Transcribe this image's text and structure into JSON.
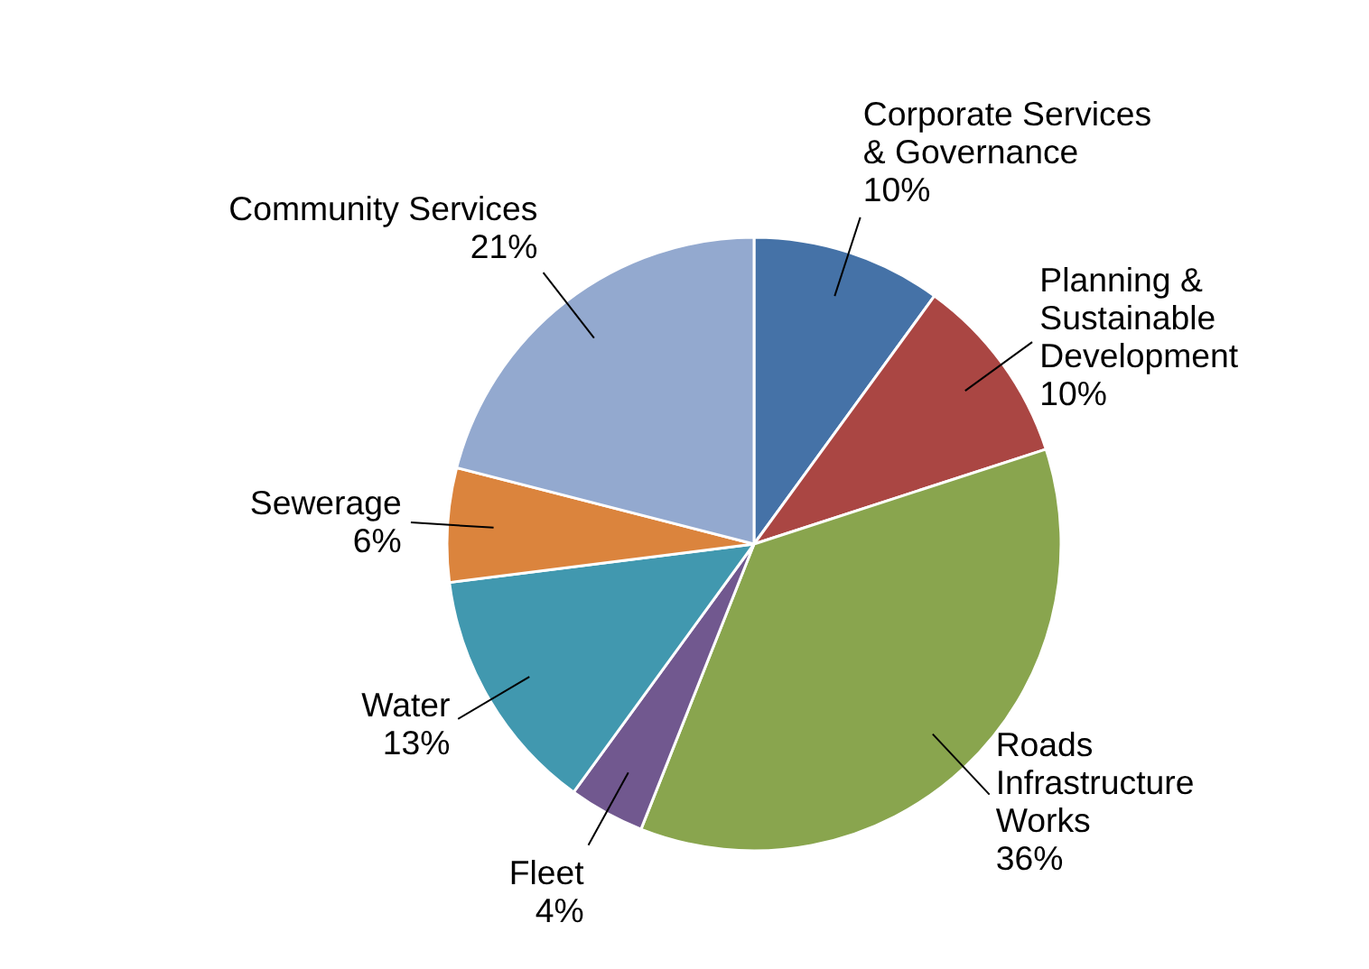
{
  "chart_data": {
    "type": "pie",
    "categories": [
      "Corporate Services & Governance",
      "Planning & Sustainable Development",
      "Roads Infrastructure Works",
      "Fleet",
      "Water",
      "Sewerage",
      "Community Services"
    ],
    "values": [
      10,
      10,
      36,
      4,
      13,
      6,
      21
    ],
    "colors": [
      "#4572a7",
      "#aa4643",
      "#89a54e",
      "#71588f",
      "#4198af",
      "#db843d",
      "#93a9cf"
    ],
    "value_labels": [
      "10%",
      "10%",
      "36%",
      "4%",
      "13%",
      "6%",
      "21%"
    ]
  }
}
